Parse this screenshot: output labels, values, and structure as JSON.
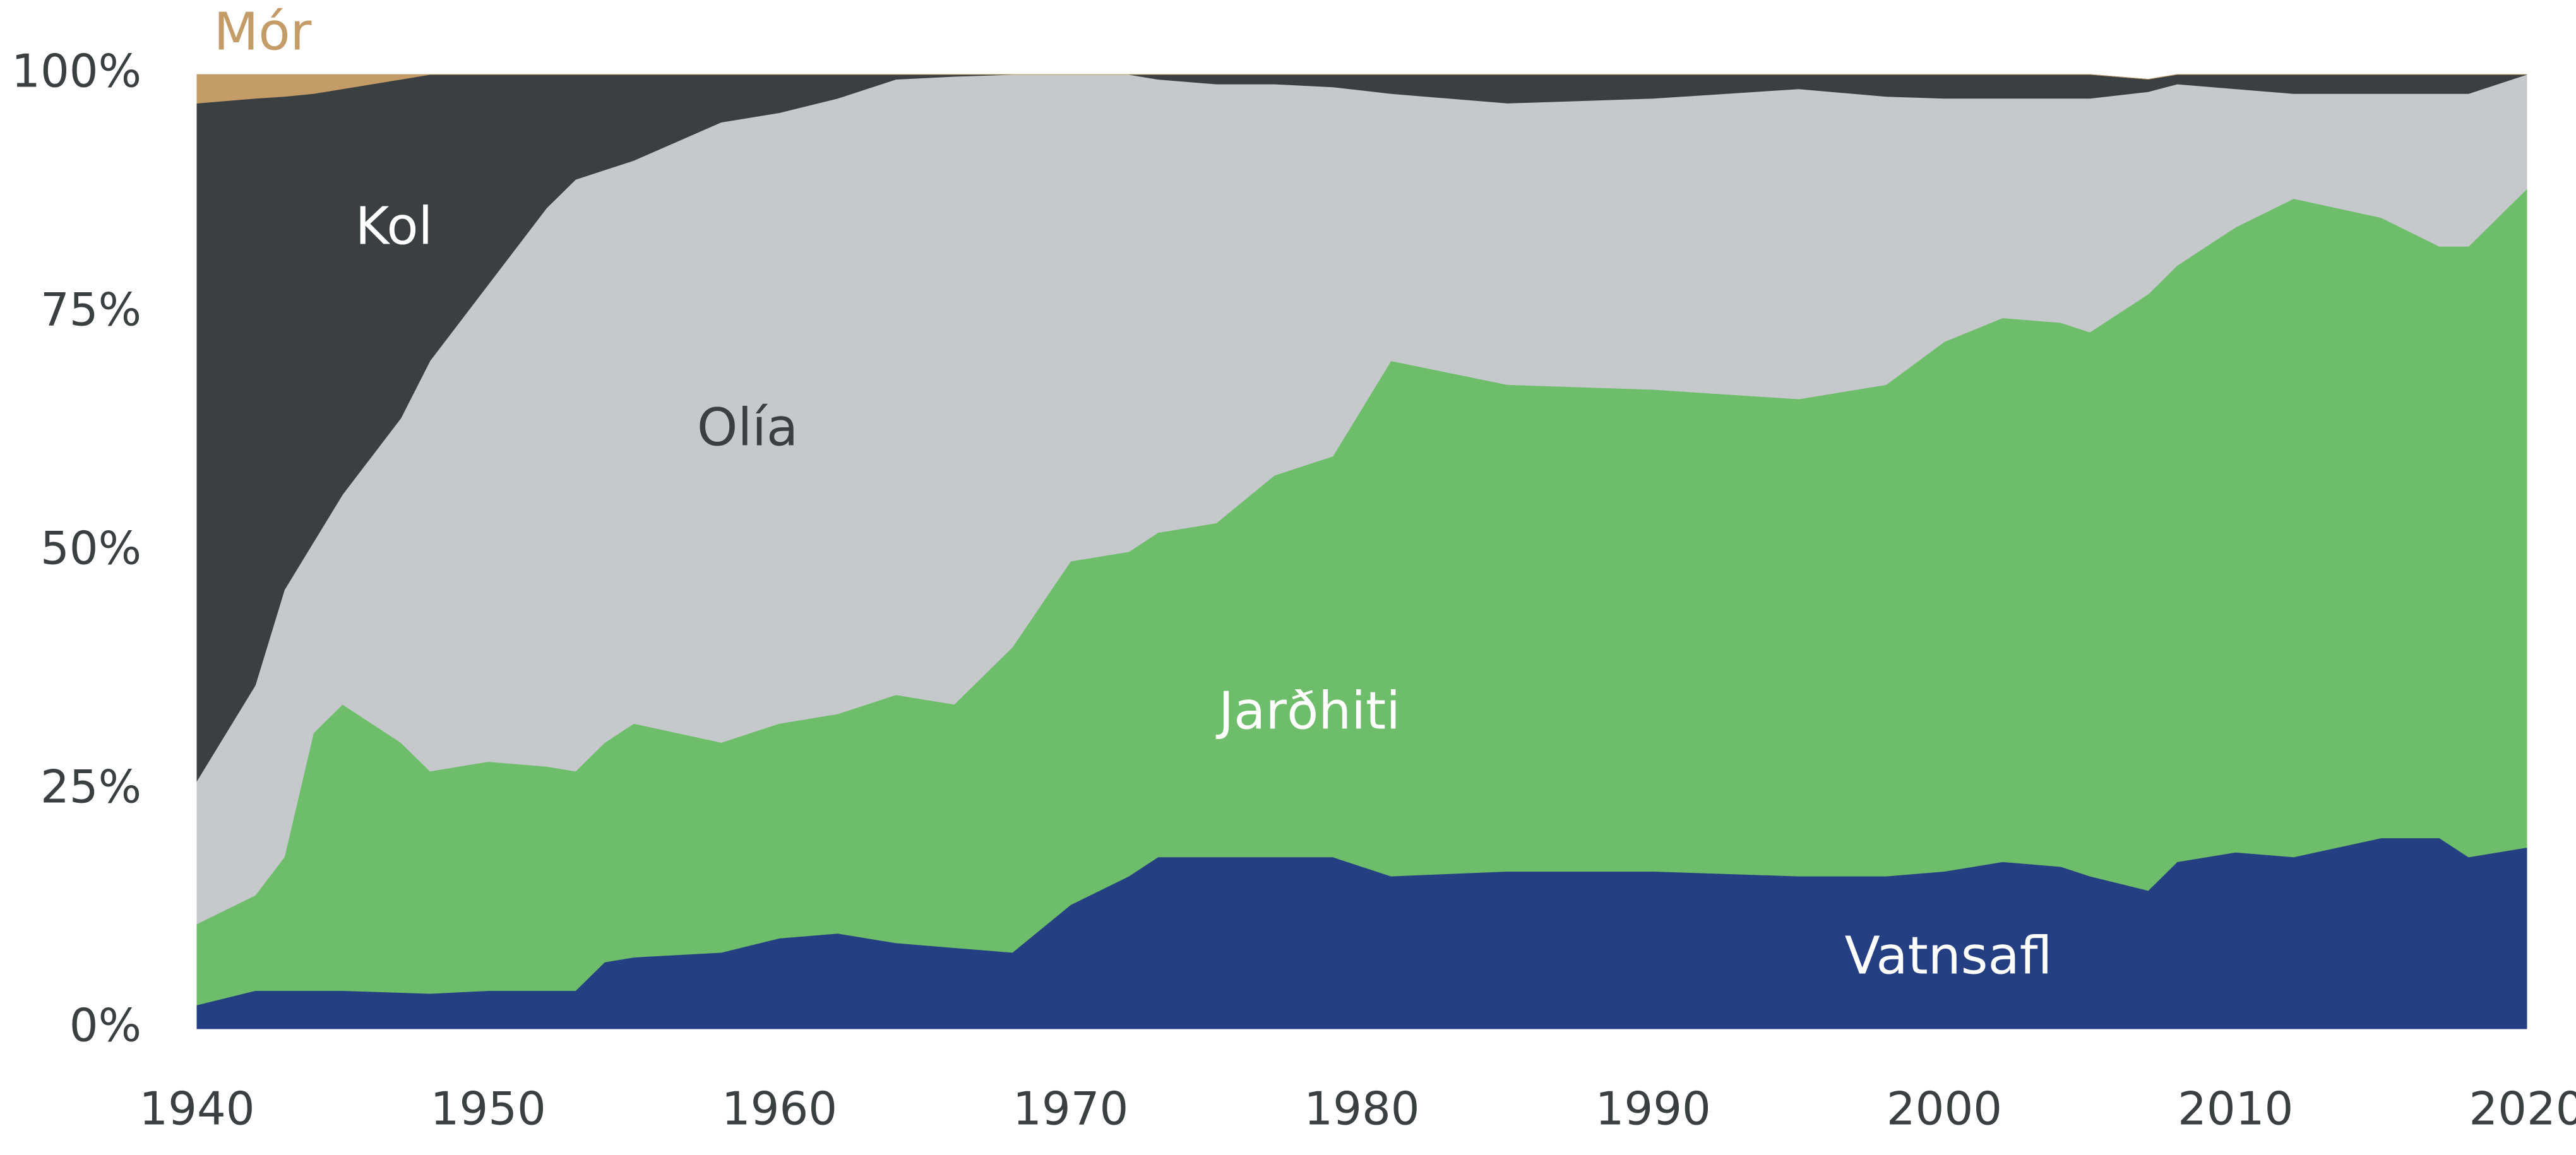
{
  "chart_data": {
    "type": "stacked_area",
    "x": [
      1940,
      1942,
      1943,
      1944,
      1945,
      1947,
      1948,
      1950,
      1952,
      1953,
      1954,
      1955,
      1958,
      1960,
      1962,
      1964,
      1966,
      1968,
      1970,
      1972,
      1973,
      1975,
      1977,
      1979,
      1981,
      1985,
      1990,
      1995,
      1998,
      2000,
      2002,
      2004,
      2005,
      2007,
      2008,
      2010,
      2012,
      2015,
      2017,
      2018,
      2020
    ],
    "series": [
      {
        "name": "Vatnsafl",
        "color": "#253f83",
        "values": [
          2.5,
          4,
          4,
          4,
          4,
          3.8,
          3.7,
          4,
          4,
          4,
          7,
          7.5,
          8,
          9.5,
          10,
          9,
          8.5,
          8,
          13,
          16,
          18,
          18,
          18,
          18,
          16,
          16.5,
          16.5,
          16,
          16,
          16.5,
          17.5,
          17,
          16,
          14.5,
          17.5,
          18.5,
          18,
          20,
          20,
          18,
          19
        ]
      },
      {
        "name": "Jarðhiti",
        "color": "#6dbd6a",
        "values": [
          8.5,
          10,
          14,
          27,
          30,
          26.2,
          23.3,
          24,
          23.5,
          23,
          23,
          24.5,
          22,
          22.5,
          23,
          26,
          25.5,
          32,
          36,
          34,
          34,
          35,
          40,
          42,
          54,
          51,
          50.5,
          50,
          51.5,
          55.5,
          57,
          57,
          57,
          62.5,
          62.5,
          65.5,
          69,
          65,
          62,
          64,
          69
        ]
      },
      {
        "name": "Olía",
        "color": "#c5c9cc",
        "values": [
          15,
          22,
          28,
          20,
          22,
          34,
          43,
          50,
          58.5,
          62,
          60,
          59,
          65,
          64,
          64.5,
          64.5,
          65.8,
          60,
          51,
          50,
          47.5,
          46,
          41,
          38.7,
          28,
          29.5,
          30.5,
          32.5,
          30.2,
          25.5,
          23,
          23.5,
          24.5,
          21.2,
          19,
          14.5,
          11,
          13,
          16,
          16,
          12
        ]
      },
      {
        "name": "Kol",
        "color": "#3a3f42",
        "values": [
          71,
          61.5,
          51.7,
          47,
          42.5,
          35.5,
          30,
          22,
          14,
          11,
          10,
          9,
          5,
          4,
          2.5,
          0.5,
          0.2,
          0,
          0,
          0,
          0.5,
          1,
          1,
          1.3,
          2,
          3,
          2.5,
          1.5,
          2.3,
          2.5,
          2.5,
          2.5,
          2.5,
          1.3,
          1,
          1.5,
          2,
          2,
          2,
          2,
          0
        ]
      },
      {
        "name": "Mór",
        "color": "#c49c68",
        "values": [
          3,
          2.5,
          2.3,
          2,
          1.5,
          0.5,
          0,
          0,
          0,
          0,
          0,
          0,
          0,
          0,
          0,
          0,
          0,
          0,
          0,
          0,
          0,
          0,
          0,
          0,
          0,
          0,
          0,
          0,
          0,
          0,
          0,
          0,
          0,
          0,
          0,
          0,
          0,
          0,
          0,
          0,
          0
        ]
      }
    ],
    "xlim": [
      1940,
      2020
    ],
    "xticks": [
      1940,
      1950,
      1960,
      1970,
      1980,
      1990,
      2000,
      2010,
      2020
    ],
    "ylim": [
      0,
      100
    ],
    "yticks": [
      {
        "value": 0,
        "label": "0%"
      },
      {
        "value": 25,
        "label": "25%"
      },
      {
        "value": 50,
        "label": "50%"
      },
      {
        "value": 75,
        "label": "75%"
      },
      {
        "value": 100,
        "label": "100%"
      }
    ]
  }
}
